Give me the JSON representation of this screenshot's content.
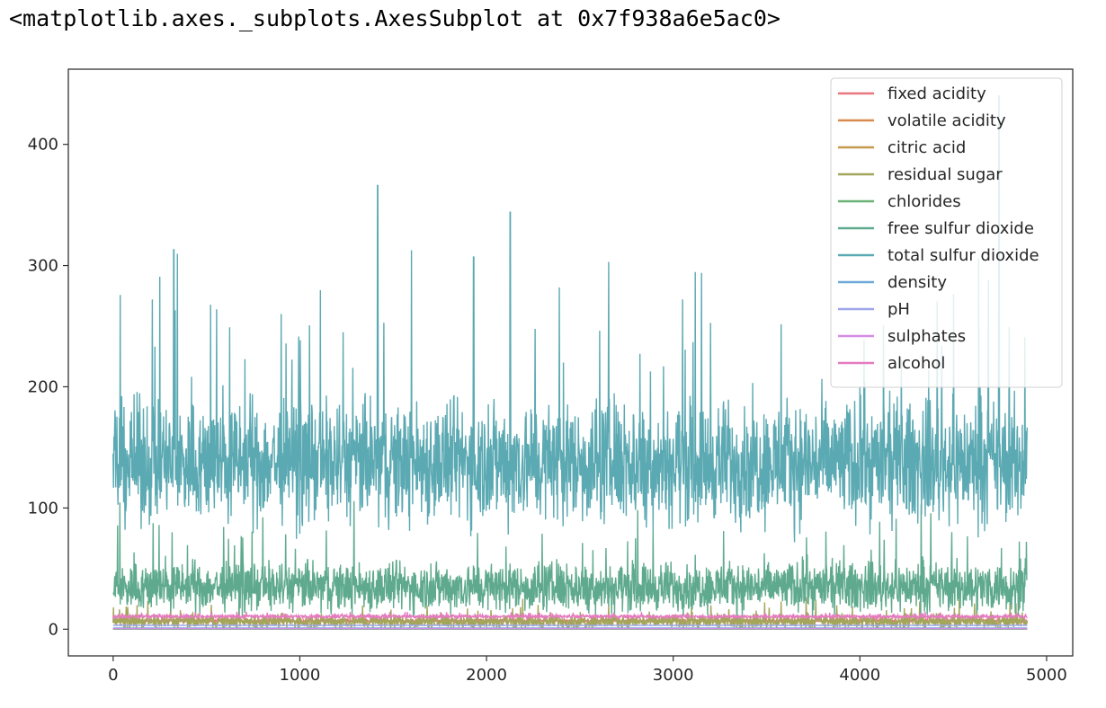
{
  "output_repr": "<matplotlib.axes._subplots.AxesSubplot at 0x7f938a6e5ac0>",
  "chart_data": {
    "type": "line",
    "title": "",
    "xlabel": "",
    "ylabel": "",
    "xlim": [
      -240,
      5140
    ],
    "ylim": [
      -22,
      462
    ],
    "xticks": [
      0,
      1000,
      2000,
      3000,
      4000,
      5000
    ],
    "xtick_labels": [
      "0",
      "1000",
      "2000",
      "3000",
      "4000",
      "5000"
    ],
    "yticks": [
      0,
      100,
      200,
      300,
      400
    ],
    "ytick_labels": [
      "0",
      "100",
      "200",
      "300",
      "400"
    ],
    "n_points": 4898,
    "legend_position": "upper right",
    "grid": false,
    "series": [
      {
        "name": "fixed acidity",
        "color": "#e8787f",
        "base": 6.9,
        "spread": 0.8,
        "min": 3.8,
        "max": 14.2
      },
      {
        "name": "volatile acidity",
        "color": "#d98a4e",
        "base": 0.28,
        "spread": 0.1,
        "min": 0.08,
        "max": 1.1
      },
      {
        "name": "citric acid",
        "color": "#c49a4e",
        "base": 0.33,
        "spread": 0.12,
        "min": 0.0,
        "max": 1.66
      },
      {
        "name": "residual sugar",
        "color": "#a3a65a",
        "base": 6.4,
        "spread": 5.0,
        "min": 0.6,
        "max": 65.8
      },
      {
        "name": "chlorides",
        "color": "#6bb277",
        "base": 0.046,
        "spread": 0.02,
        "min": 0.009,
        "max": 0.346
      },
      {
        "name": "free sulfur dioxide",
        "color": "#5faa8e",
        "base": 35,
        "spread": 17,
        "min": 2,
        "max": 289
      },
      {
        "name": "total sulfur dioxide",
        "color": "#5ba9b2",
        "base": 138,
        "spread": 42,
        "min": 9,
        "max": 440
      },
      {
        "name": "density",
        "color": "#6fa9d8",
        "base": 0.994,
        "spread": 0.003,
        "min": 0.987,
        "max": 1.039
      },
      {
        "name": "pH",
        "color": "#9ea6ea",
        "base": 3.19,
        "spread": 0.15,
        "min": 2.72,
        "max": 3.82
      },
      {
        "name": "sulphates",
        "color": "#d48be6",
        "base": 0.49,
        "spread": 0.11,
        "min": 0.22,
        "max": 1.08
      },
      {
        "name": "alcohol",
        "color": "#e57bbf",
        "base": 10.5,
        "spread": 1.2,
        "min": 8.0,
        "max": 14.2
      }
    ],
    "spikes": [
      {
        "series": "total sulfur dioxide",
        "x": 325,
        "y": 313
      },
      {
        "series": "total sulfur dioxide",
        "x": 1417,
        "y": 366
      },
      {
        "series": "total sulfur dioxide",
        "x": 1931,
        "y": 307
      },
      {
        "series": "total sulfur dioxide",
        "x": 2127,
        "y": 344
      },
      {
        "series": "total sulfur dioxide",
        "x": 2654,
        "y": 303
      },
      {
        "series": "total sulfur dioxide",
        "x": 3050,
        "y": 272
      },
      {
        "series": "total sulfur dioxide",
        "x": 3152,
        "y": 294
      },
      {
        "series": "total sulfur dioxide",
        "x": 4745,
        "y": 440
      },
      {
        "series": "total sulfur dioxide",
        "x": 210,
        "y": 272
      },
      {
        "series": "total sulfur dioxide",
        "x": 2390,
        "y": 282
      }
    ]
  }
}
